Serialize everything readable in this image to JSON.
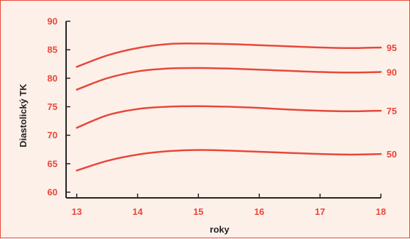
{
  "chart_data": {
    "type": "line",
    "title": "",
    "xlabel": "roky",
    "ylabel": "Diastolický TK",
    "xlim": [
      13,
      18
    ],
    "ylim": [
      60,
      90
    ],
    "x_ticks": [
      13,
      14,
      15,
      16,
      17,
      18
    ],
    "y_ticks": [
      60,
      65,
      70,
      75,
      80,
      85,
      90
    ],
    "grid": false,
    "x": [
      13,
      13.5,
      14,
      14.5,
      15,
      15.5,
      16,
      16.5,
      17,
      17.5,
      18
    ],
    "series": [
      {
        "name": "95",
        "values": [
          82.0,
          84.0,
          85.3,
          86.0,
          86.1,
          86.0,
          85.8,
          85.6,
          85.4,
          85.3,
          85.4
        ]
      },
      {
        "name": "90",
        "values": [
          78.0,
          80.0,
          81.2,
          81.7,
          81.8,
          81.7,
          81.5,
          81.3,
          81.1,
          81.0,
          81.1
        ]
      },
      {
        "name": "75",
        "values": [
          71.3,
          73.5,
          74.6,
          75.0,
          75.1,
          75.0,
          74.8,
          74.5,
          74.3,
          74.2,
          74.3
        ]
      },
      {
        "name": "50",
        "values": [
          63.8,
          65.5,
          66.6,
          67.2,
          67.4,
          67.3,
          67.1,
          66.9,
          66.7,
          66.6,
          66.7
        ]
      }
    ],
    "colors": {
      "line": "#e8463a",
      "axis": "#222222",
      "tick_text": "#e8463a",
      "background": "#fdf0e8"
    }
  }
}
